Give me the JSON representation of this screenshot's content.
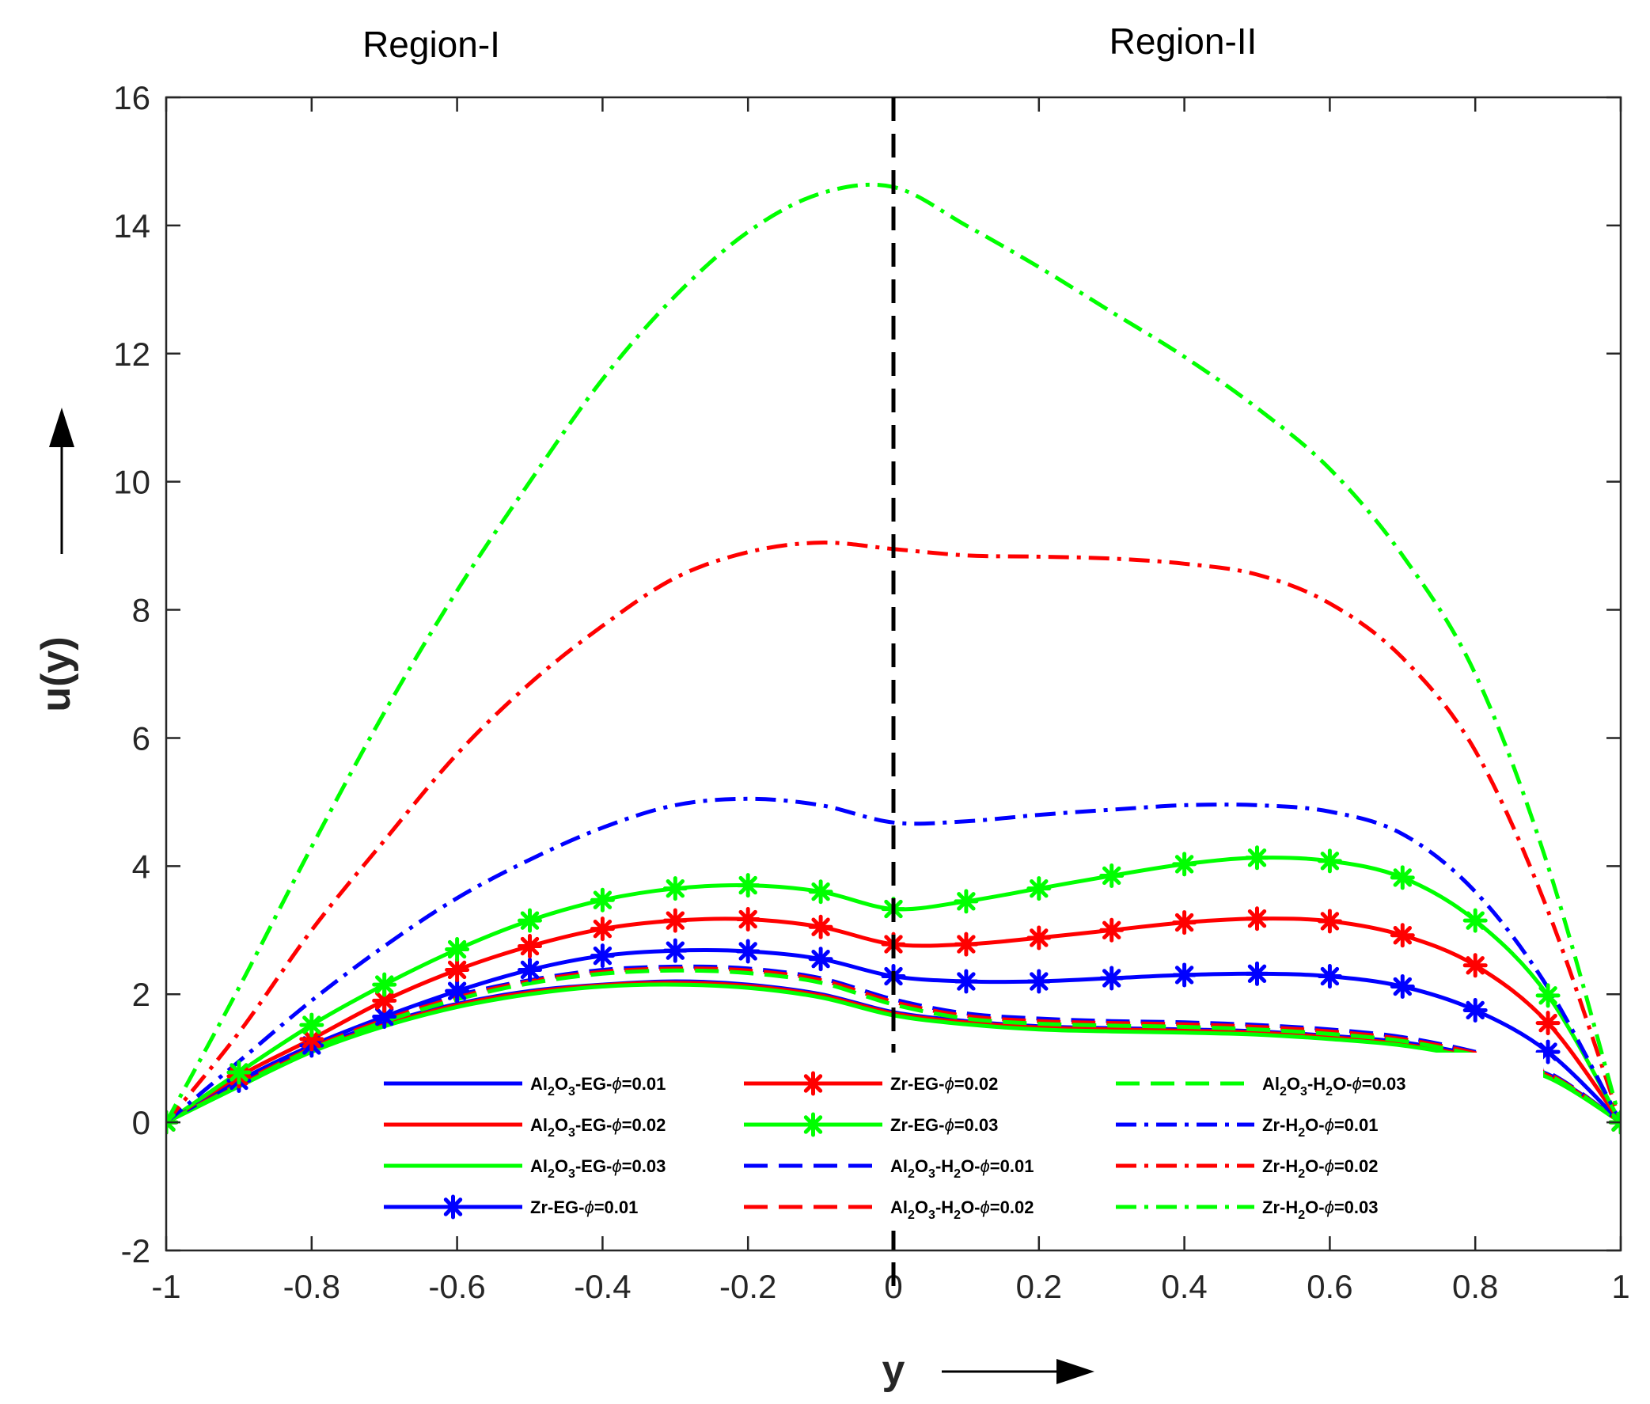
{
  "chart_data": {
    "type": "line",
    "title": "",
    "xlabel": "y",
    "ylabel": "u(y)",
    "xlim": [
      -1,
      1
    ],
    "ylim": [
      -2,
      16
    ],
    "xticks": [
      -1,
      -0.8,
      -0.6,
      -0.4,
      -0.2,
      0,
      0.2,
      0.4,
      0.6,
      0.8,
      1
    ],
    "xtick_labels": [
      "-1",
      "-0.8",
      "-0.6",
      "-0.4",
      "-0.2",
      "0",
      "0.2",
      "0.4",
      "0.6",
      "0.8",
      "1"
    ],
    "yticks": [
      -2,
      0,
      2,
      4,
      6,
      8,
      10,
      12,
      14,
      16
    ],
    "ytick_labels": [
      "-2",
      "0",
      "2",
      "4",
      "6",
      "8",
      "10",
      "12",
      "14",
      "16"
    ],
    "grid": false,
    "legend_position": "bottom-center",
    "annotations": {
      "region_left": "Region-I",
      "region_right": "Region-II",
      "interface_line_at": 0
    },
    "x": [
      -1,
      -0.9,
      -0.8,
      -0.7,
      -0.6,
      -0.5,
      -0.4,
      -0.3,
      -0.2,
      -0.1,
      0,
      0.1,
      0.2,
      0.3,
      0.4,
      0.5,
      0.6,
      0.7,
      0.8,
      0.9,
      1
    ],
    "series": [
      {
        "id": "s1",
        "label_html": "Al<sub>2</sub>O<sub>3</sub>-EG-ϕ=0.01",
        "color": "#0000ff",
        "style": "solid",
        "marker": "none",
        "values": [
          0,
          0.6,
          1.15,
          1.55,
          1.85,
          2.05,
          2.15,
          2.2,
          2.15,
          2.0,
          1.72,
          1.58,
          1.5,
          1.47,
          1.45,
          1.42,
          1.35,
          1.25,
          1.05,
          0.75,
          0
        ]
      },
      {
        "id": "s2",
        "label_html": "Al<sub>2</sub>O<sub>3</sub>-EG-ϕ=0.02",
        "color": "#ff0000",
        "style": "solid",
        "marker": "none",
        "values": [
          0,
          0.58,
          1.12,
          1.52,
          1.83,
          2.03,
          2.14,
          2.18,
          2.13,
          1.98,
          1.7,
          1.56,
          1.48,
          1.45,
          1.43,
          1.4,
          1.33,
          1.22,
          1.02,
          0.73,
          0
        ]
      },
      {
        "id": "s3",
        "label_html": "Al<sub>2</sub>O<sub>3</sub>-EG-ϕ=0.03",
        "color": "#00ff00",
        "style": "solid",
        "marker": "none",
        "values": [
          0,
          0.56,
          1.1,
          1.5,
          1.8,
          2.0,
          2.12,
          2.15,
          2.1,
          1.95,
          1.67,
          1.53,
          1.45,
          1.42,
          1.4,
          1.37,
          1.3,
          1.2,
          1.0,
          0.7,
          0
        ]
      },
      {
        "id": "s4",
        "label_html": "Zr-EG-ϕ=0.01",
        "color": "#0000ff",
        "style": "solid",
        "marker": "asterisk",
        "values": [
          0,
          0.65,
          1.2,
          1.65,
          2.05,
          2.38,
          2.6,
          2.68,
          2.67,
          2.55,
          2.28,
          2.2,
          2.2,
          2.25,
          2.3,
          2.32,
          2.28,
          2.12,
          1.75,
          1.1,
          0
        ]
      },
      {
        "id": "s5",
        "label_html": "Zr-EG-ϕ=0.02",
        "color": "#ff0000",
        "style": "solid",
        "marker": "asterisk",
        "values": [
          0,
          0.72,
          1.3,
          1.9,
          2.38,
          2.75,
          3.02,
          3.15,
          3.17,
          3.05,
          2.78,
          2.78,
          2.88,
          3.0,
          3.12,
          3.18,
          3.14,
          2.92,
          2.45,
          1.55,
          0
        ]
      },
      {
        "id": "s6",
        "label_html": "Zr-EG-ϕ=0.03",
        "color": "#00ff00",
        "style": "solid",
        "marker": "asterisk",
        "values": [
          0,
          0.78,
          1.52,
          2.15,
          2.7,
          3.15,
          3.47,
          3.65,
          3.7,
          3.6,
          3.33,
          3.45,
          3.65,
          3.85,
          4.03,
          4.13,
          4.08,
          3.82,
          3.15,
          1.98,
          0
        ]
      },
      {
        "id": "s7",
        "label_html": "Al<sub>2</sub>O<sub>3</sub>-H<sub>2</sub>O-ϕ=0.01",
        "color": "#0000ff",
        "style": "dashed",
        "marker": "none",
        "values": [
          0,
          0.62,
          1.18,
          1.62,
          1.98,
          2.22,
          2.38,
          2.43,
          2.4,
          2.25,
          1.92,
          1.7,
          1.62,
          1.58,
          1.56,
          1.52,
          1.45,
          1.33,
          1.1,
          0.78,
          0
        ]
      },
      {
        "id": "s8",
        "label_html": "Al<sub>2</sub>O<sub>3</sub>-H<sub>2</sub>O-ϕ=0.02",
        "color": "#ff0000",
        "style": "dashed",
        "marker": "none",
        "values": [
          0,
          0.6,
          1.16,
          1.6,
          1.95,
          2.2,
          2.35,
          2.4,
          2.37,
          2.22,
          1.88,
          1.66,
          1.58,
          1.55,
          1.53,
          1.49,
          1.42,
          1.3,
          1.08,
          0.76,
          0
        ]
      },
      {
        "id": "s9",
        "label_html": "Al<sub>2</sub>O<sub>3</sub>-H<sub>2</sub>O-ϕ=0.03",
        "color": "#00ff00",
        "style": "dashed",
        "marker": "none",
        "values": [
          0,
          0.58,
          1.14,
          1.57,
          1.92,
          2.17,
          2.32,
          2.37,
          2.33,
          2.18,
          1.84,
          1.62,
          1.54,
          1.51,
          1.49,
          1.45,
          1.38,
          1.27,
          1.05,
          0.74,
          0
        ]
      },
      {
        "id": "s10",
        "label_html": "Zr-H<sub>2</sub>O-ϕ=0.01",
        "color": "#0000ff",
        "style": "dashdot",
        "marker": "none",
        "values": [
          0,
          0.95,
          1.9,
          2.75,
          3.5,
          4.1,
          4.6,
          4.95,
          5.05,
          4.95,
          4.68,
          4.7,
          4.8,
          4.88,
          4.95,
          4.95,
          4.85,
          4.5,
          3.6,
          2.1,
          0
        ]
      },
      {
        "id": "s11",
        "label_html": "Zr-H<sub>2</sub>O-ϕ=0.02",
        "color": "#ff0000",
        "style": "dashdot",
        "marker": "none",
        "values": [
          0,
          1.4,
          3.0,
          4.4,
          5.75,
          6.85,
          7.75,
          8.5,
          8.9,
          9.05,
          8.95,
          8.85,
          8.83,
          8.8,
          8.72,
          8.55,
          8.1,
          7.25,
          5.8,
          3.3,
          0
        ]
      },
      {
        "id": "s12",
        "label_html": "Zr-H<sub>2</sub>O-ϕ=0.03",
        "color": "#00ff00",
        "style": "dashdot",
        "marker": "none",
        "values": [
          0,
          2.1,
          4.3,
          6.4,
          8.3,
          10.0,
          11.6,
          12.9,
          13.9,
          14.5,
          14.6,
          14.0,
          13.35,
          12.65,
          11.95,
          11.15,
          10.2,
          8.85,
          7.0,
          4.0,
          0
        ]
      }
    ]
  }
}
